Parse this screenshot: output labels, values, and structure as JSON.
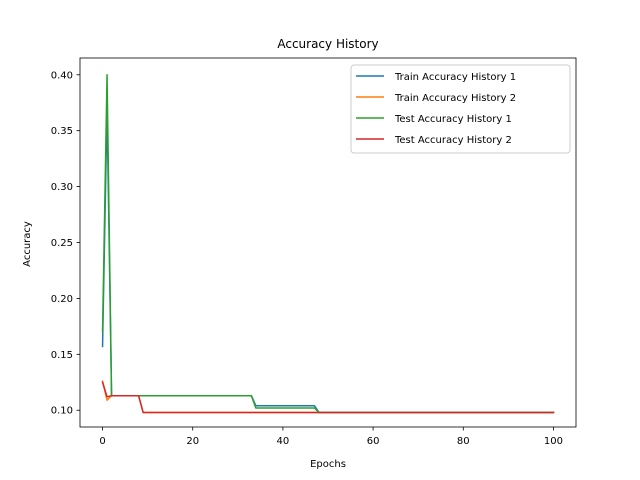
{
  "chart_data": {
    "type": "line",
    "title": "Accuracy History",
    "xlabel": "Epochs",
    "ylabel": "Accuracy",
    "xlim": [
      -5,
      105
    ],
    "ylim": [
      0.085,
      0.415
    ],
    "xticks": [
      0,
      20,
      40,
      60,
      80,
      100
    ],
    "yticks": [
      0.1,
      0.15,
      0.2,
      0.25,
      0.3,
      0.35,
      0.4
    ],
    "ytick_labels": [
      "0.10",
      "0.15",
      "0.20",
      "0.25",
      "0.30",
      "0.35",
      "0.40"
    ],
    "grid": false,
    "legend_position": "top-right",
    "series": [
      {
        "name": "Train Accuracy History 1",
        "color": "#1f77b4",
        "points": [
          [
            0,
            0.157
          ],
          [
            1,
            0.37
          ],
          [
            2,
            0.113
          ],
          [
            33,
            0.113
          ],
          [
            34,
            0.104
          ],
          [
            47,
            0.104
          ],
          [
            48,
            0.098
          ],
          [
            100,
            0.098
          ]
        ]
      },
      {
        "name": "Train Accuracy History 2",
        "color": "#ff7f0e",
        "points": [
          [
            0,
            0.126
          ],
          [
            1,
            0.109
          ],
          [
            2,
            0.113
          ],
          [
            8,
            0.113
          ],
          [
            9,
            0.098
          ],
          [
            100,
            0.098
          ]
        ]
      },
      {
        "name": "Test Accuracy History 1",
        "color": "#2ca02c",
        "points": [
          [
            0,
            0.17
          ],
          [
            1,
            0.4
          ],
          [
            2,
            0.113
          ],
          [
            33,
            0.113
          ],
          [
            34,
            0.102
          ],
          [
            47,
            0.102
          ],
          [
            48,
            0.098
          ],
          [
            100,
            0.098
          ]
        ]
      },
      {
        "name": "Test Accuracy History 2",
        "color": "#d62728",
        "points": [
          [
            0,
            0.125
          ],
          [
            1,
            0.112
          ],
          [
            2,
            0.113
          ],
          [
            8,
            0.113
          ],
          [
            9,
            0.098
          ],
          [
            100,
            0.098
          ]
        ]
      }
    ]
  }
}
